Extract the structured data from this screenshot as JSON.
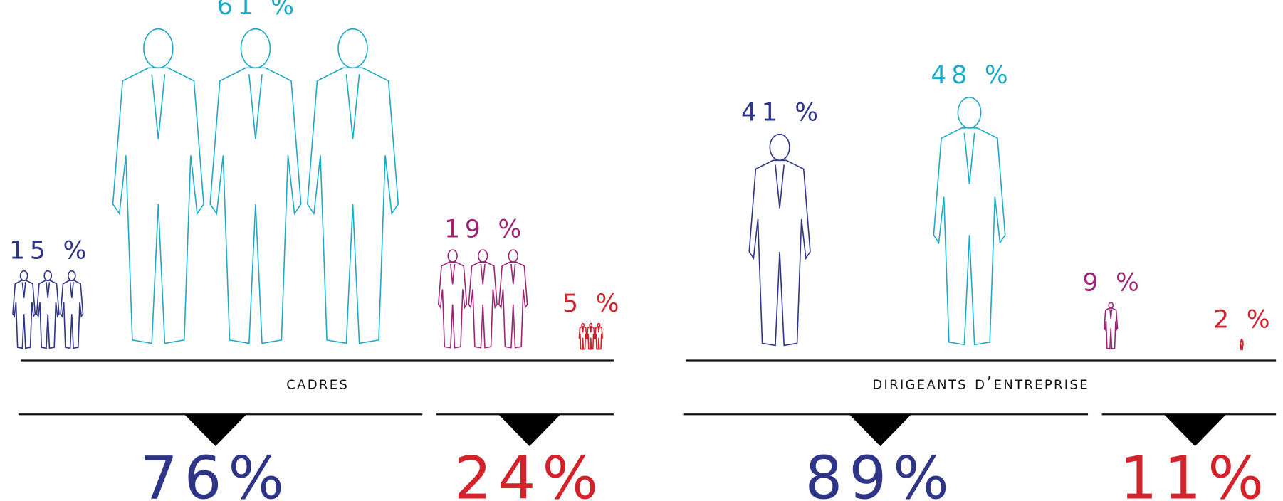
{
  "chart_data": [
    {
      "type": "pictogram",
      "title": "cadres",
      "values": [
        15,
        61,
        19,
        5
      ],
      "value_labels": [
        "15 %",
        "61 %",
        "19 %",
        "5 %"
      ],
      "colors": [
        "#2e3586",
        "#1aa9c6",
        "#9b2574",
        "#d3222a"
      ],
      "groups": [
        {
          "values": [
            76
          ],
          "value_labels": [
            "76%"
          ],
          "color": "#2e3586"
        },
        {
          "values": [
            24
          ],
          "value_labels": [
            "24%"
          ],
          "color": "#d3222a"
        }
      ]
    },
    {
      "type": "pictogram",
      "title": "dirigeants d’entreprise",
      "values": [
        41,
        48,
        9,
        2
      ],
      "value_labels": [
        "41 %",
        "48 %",
        "9 %",
        "2 %"
      ],
      "colors": [
        "#2e3586",
        "#1aa9c6",
        "#9b2574",
        "#d3222a"
      ],
      "groups": [
        {
          "values": [
            89
          ],
          "value_labels": [
            "89%"
          ],
          "color": "#2e3586"
        },
        {
          "values": [
            11
          ],
          "value_labels": [
            "11%"
          ],
          "color": "#d3222a"
        }
      ]
    }
  ]
}
